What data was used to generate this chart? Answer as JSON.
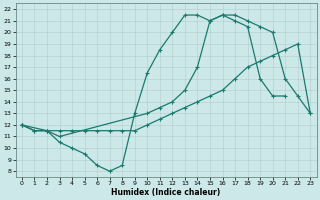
{
  "xlabel": "Humidex (Indice chaleur)",
  "bg_color": "#cce8e8",
  "line_color": "#1a7a6e",
  "grid_color": "#b8d8d8",
  "xlim": [
    -0.5,
    23.5
  ],
  "ylim": [
    7.5,
    22.5
  ],
  "xticks": [
    0,
    1,
    2,
    3,
    4,
    5,
    6,
    7,
    8,
    9,
    10,
    11,
    12,
    13,
    14,
    15,
    16,
    17,
    18,
    19,
    20,
    21,
    22,
    23
  ],
  "yticks": [
    8,
    9,
    10,
    11,
    12,
    13,
    14,
    15,
    16,
    17,
    18,
    19,
    20,
    21,
    22
  ],
  "line1_x": [
    0,
    1,
    2,
    3,
    4,
    5,
    6,
    7,
    8,
    9,
    10,
    11,
    12,
    13,
    14,
    15,
    16,
    17,
    18,
    19,
    20,
    21
  ],
  "line1_y": [
    12,
    11.5,
    11.5,
    10.5,
    10,
    9.5,
    8.5,
    8,
    8.5,
    13,
    16.5,
    18.5,
    20,
    21.5,
    21.5,
    21,
    21.5,
    21,
    20.5,
    16,
    14.5,
    14.5
  ],
  "line2_x": [
    0,
    2,
    3,
    10,
    11,
    12,
    13,
    14,
    15,
    16,
    17,
    18,
    19,
    20,
    21,
    22,
    23
  ],
  "line2_y": [
    12,
    11.5,
    11,
    13,
    13.5,
    14,
    15,
    17,
    21,
    21.5,
    21.5,
    21,
    20.5,
    20,
    16,
    14.5,
    13
  ],
  "line3_x": [
    0,
    1,
    2,
    3,
    4,
    5,
    6,
    7,
    8,
    9,
    10,
    11,
    12,
    13,
    14,
    15,
    16,
    17,
    18,
    19,
    20,
    21,
    22,
    23
  ],
  "line3_y": [
    12,
    11.5,
    11.5,
    11.5,
    11.5,
    11.5,
    11.5,
    11.5,
    11.5,
    11.5,
    12,
    12.5,
    13,
    13.5,
    14,
    14.5,
    15,
    16,
    17,
    17.5,
    18,
    18.5,
    19,
    13
  ]
}
